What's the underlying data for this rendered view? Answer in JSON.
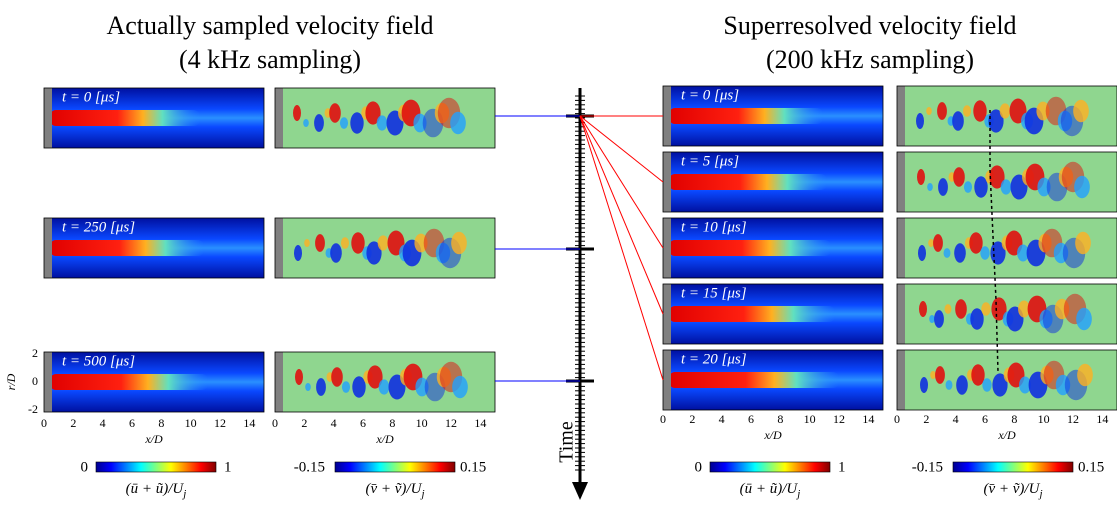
{
  "left_title": [
    "Actually sampled velocity field",
    "(4 kHz sampling)"
  ],
  "right_title": [
    "Superresolved velocity field",
    "(200 kHz sampling)"
  ],
  "left_frames": [
    "t = 0 [μs]",
    "t = 250 [μs]",
    "t = 500 [μs]"
  ],
  "right_frames": [
    "t = 0 [μs]",
    "t = 5 [μs]",
    "t = 10 [μs]",
    "t = 15 [μs]",
    "t = 20 [μs]"
  ],
  "x_ticks": [
    "0",
    "2",
    "4",
    "6",
    "8",
    "10",
    "12",
    "14"
  ],
  "y_ticks": [
    "2",
    "0",
    "-2"
  ],
  "x_label": "x/D",
  "y_label": "r/D",
  "colorbar_u": {
    "min": "0",
    "max": "1",
    "label": "(ū + ũ)/U",
    "label_sub": "j"
  },
  "colorbar_v": {
    "min": "-0.15",
    "max": "0.15",
    "label": "(v̄ + ṽ)/U",
    "label_sub": "j"
  },
  "time_label": "Time"
}
